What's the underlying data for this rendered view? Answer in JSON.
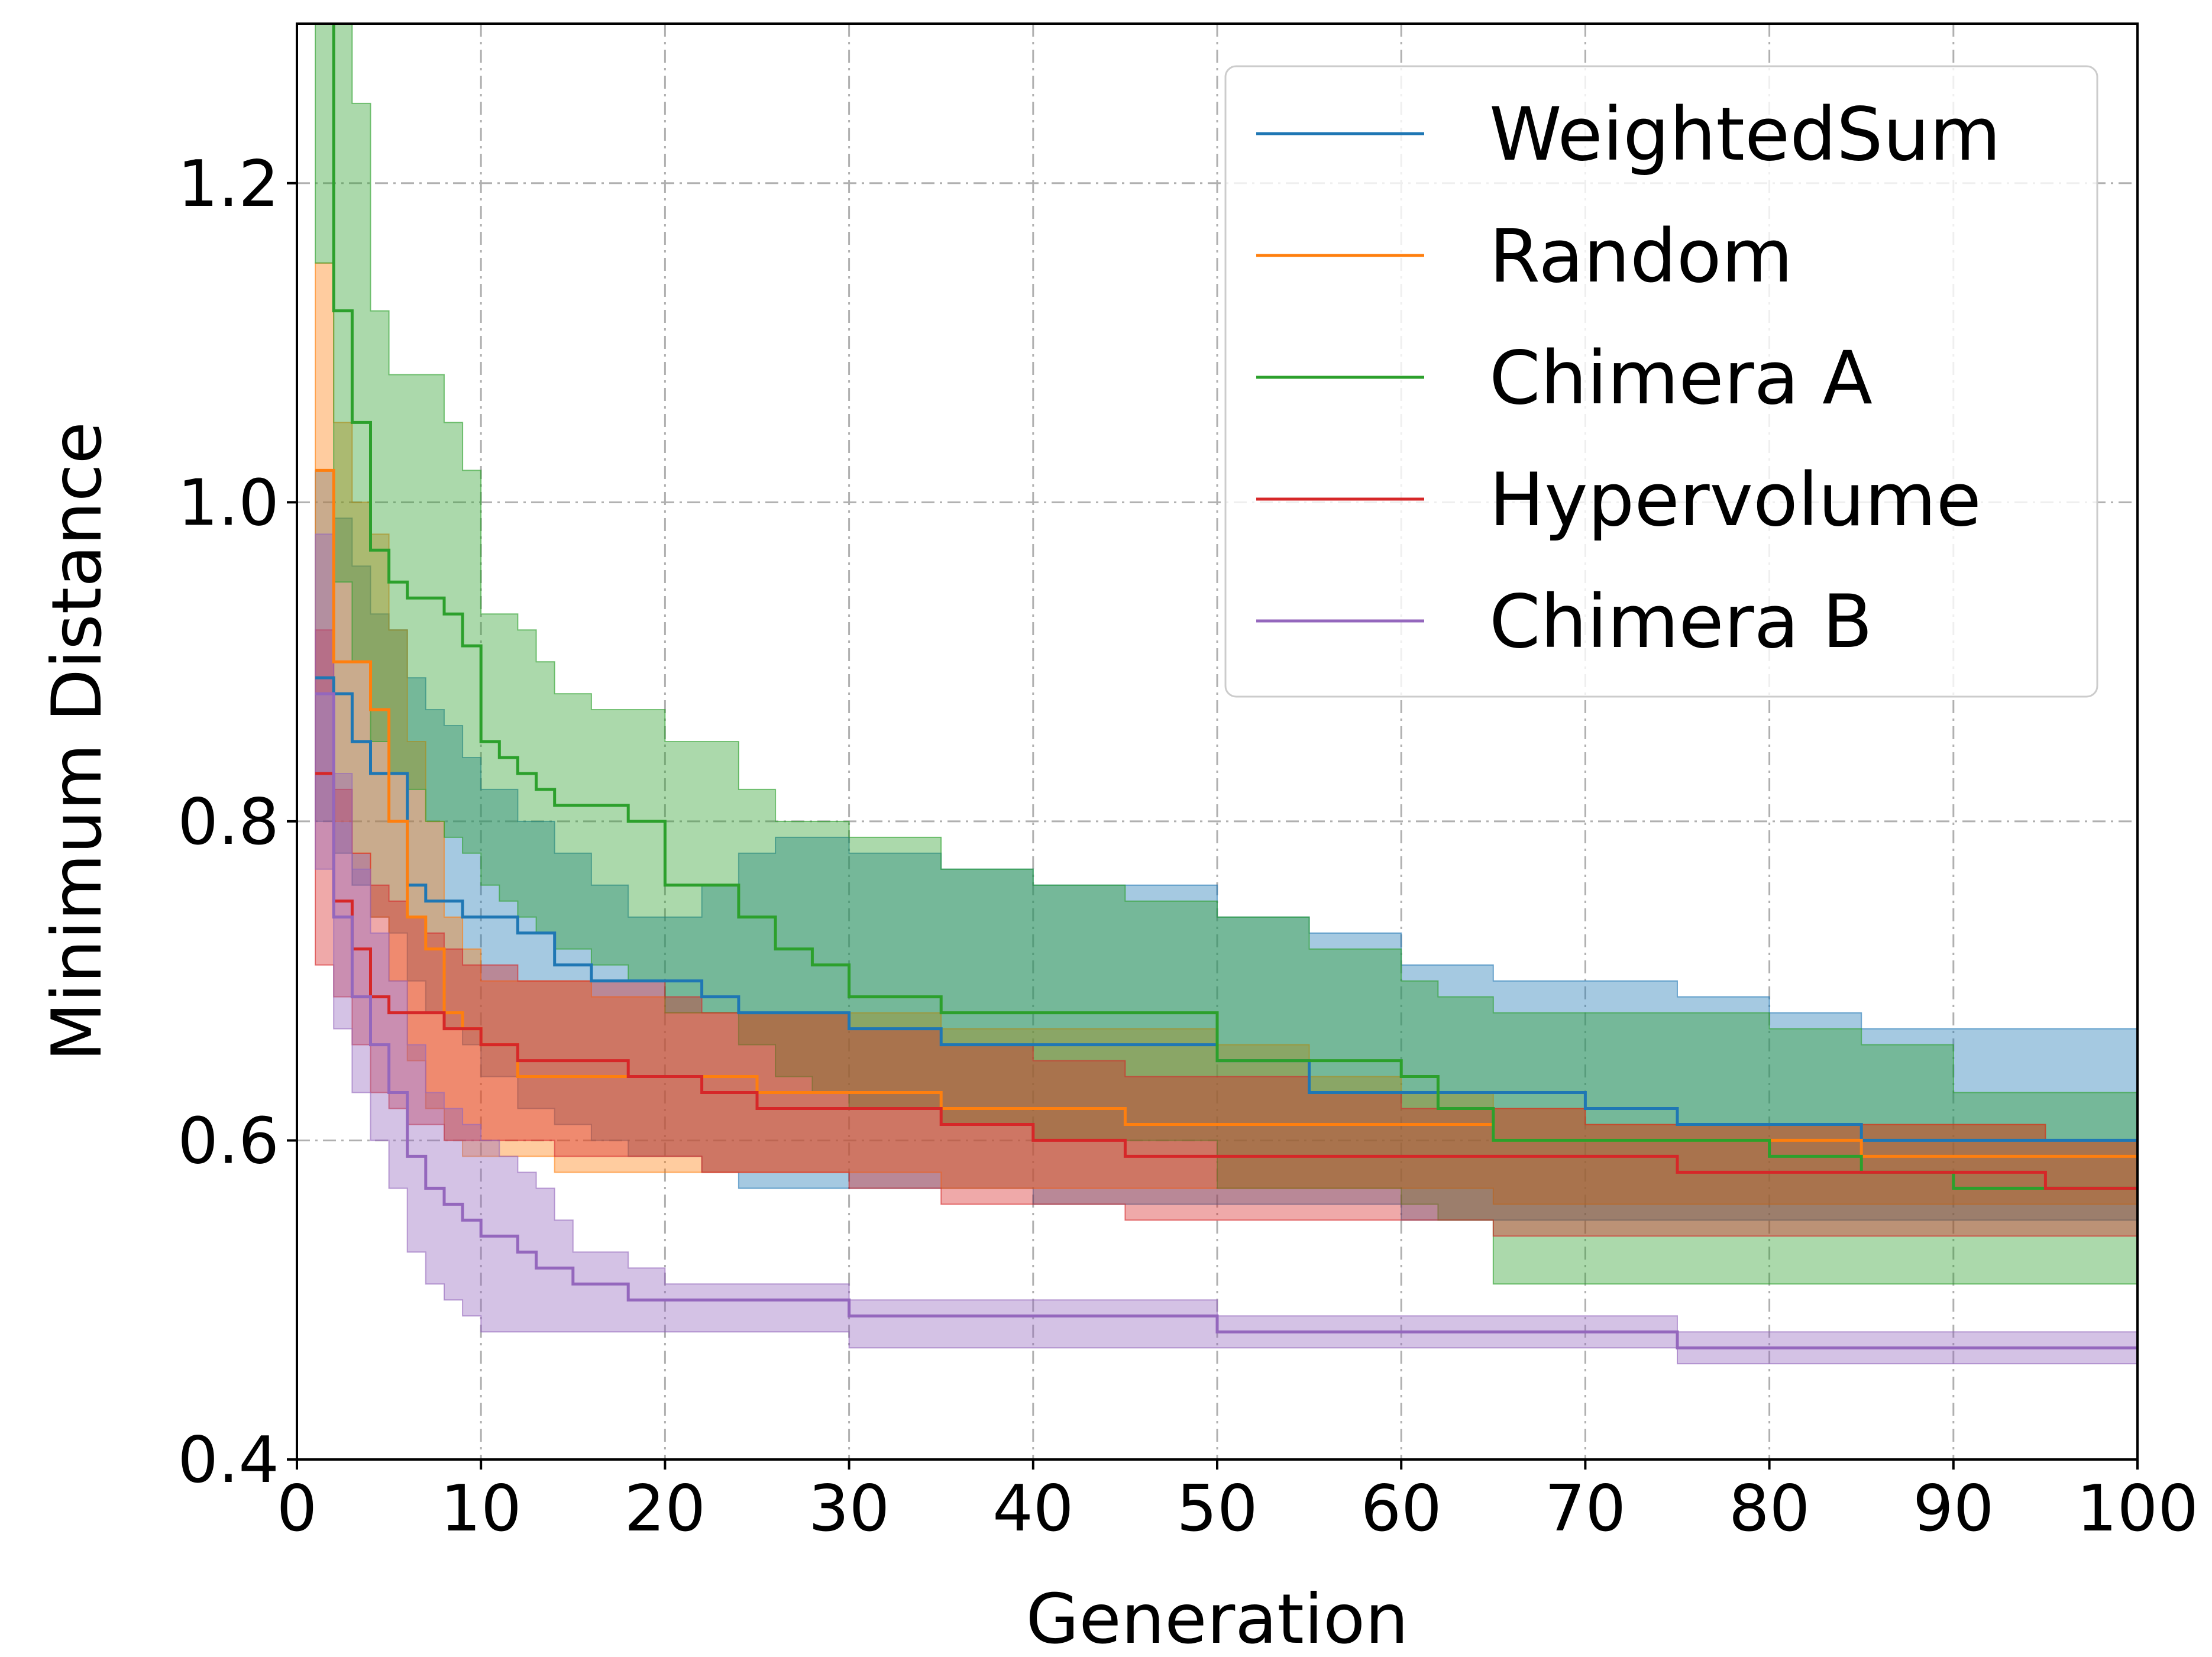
{
  "chart_data": {
    "type": "line",
    "title": "",
    "xlabel": "Generation",
    "ylabel": "Minimum Distance",
    "xlim": [
      0,
      100
    ],
    "ylim": [
      0.4,
      1.3
    ],
    "xticks": [
      "0",
      "10",
      "20",
      "30",
      "40",
      "50",
      "60",
      "70",
      "80",
      "90",
      "100"
    ],
    "yticks": [
      "0.4",
      "0.6",
      "0.8",
      "1.0",
      "1.2"
    ],
    "grid": true,
    "grid_style": "dash-dot",
    "legend_position": "top-right",
    "series": [
      {
        "name": "WeightedSum",
        "color": "#1f77b4",
        "x": [
          1,
          2,
          3,
          4,
          5,
          6,
          7,
          8,
          9,
          10,
          12,
          14,
          16,
          18,
          20,
          22,
          24,
          26,
          28,
          30,
          35,
          40,
          45,
          50,
          55,
          60,
          65,
          70,
          75,
          80,
          85,
          90,
          95,
          100
        ],
        "mean": [
          0.89,
          0.88,
          0.85,
          0.83,
          0.83,
          0.76,
          0.75,
          0.75,
          0.74,
          0.74,
          0.73,
          0.71,
          0.7,
          0.7,
          0.7,
          0.69,
          0.68,
          0.68,
          0.68,
          0.67,
          0.66,
          0.66,
          0.66,
          0.65,
          0.63,
          0.63,
          0.63,
          0.62,
          0.61,
          0.61,
          0.6,
          0.6,
          0.6,
          0.6
        ],
        "upper": [
          1.02,
          0.99,
          0.96,
          0.93,
          0.92,
          0.89,
          0.87,
          0.86,
          0.84,
          0.82,
          0.8,
          0.78,
          0.76,
          0.74,
          0.74,
          0.76,
          0.78,
          0.79,
          0.79,
          0.78,
          0.77,
          0.76,
          0.76,
          0.74,
          0.73,
          0.71,
          0.7,
          0.7,
          0.69,
          0.68,
          0.67,
          0.67,
          0.67,
          0.67
        ],
        "lower": [
          0.8,
          0.78,
          0.76,
          0.74,
          0.73,
          0.7,
          0.68,
          0.67,
          0.66,
          0.64,
          0.62,
          0.61,
          0.6,
          0.59,
          0.59,
          0.58,
          0.57,
          0.57,
          0.57,
          0.57,
          0.57,
          0.56,
          0.56,
          0.56,
          0.56,
          0.55,
          0.55,
          0.55,
          0.55,
          0.55,
          0.55,
          0.55,
          0.55,
          0.55
        ]
      },
      {
        "name": "Random",
        "color": "#ff7f0e",
        "x": [
          1,
          2,
          3,
          4,
          5,
          6,
          7,
          8,
          9,
          10,
          12,
          14,
          16,
          18,
          20,
          25,
          30,
          35,
          40,
          45,
          50,
          55,
          60,
          65,
          70,
          75,
          80,
          85,
          90,
          95,
          100
        ],
        "mean": [
          1.02,
          0.9,
          0.9,
          0.87,
          0.8,
          0.74,
          0.72,
          0.68,
          0.67,
          0.66,
          0.64,
          0.64,
          0.64,
          0.64,
          0.64,
          0.63,
          0.63,
          0.62,
          0.62,
          0.61,
          0.61,
          0.61,
          0.61,
          0.6,
          0.6,
          0.6,
          0.6,
          0.59,
          0.59,
          0.59,
          0.59
        ],
        "upper": [
          1.15,
          1.05,
          1.0,
          0.98,
          0.92,
          0.85,
          0.8,
          0.74,
          0.72,
          0.7,
          0.7,
          0.7,
          0.69,
          0.69,
          0.68,
          0.68,
          0.68,
          0.67,
          0.67,
          0.67,
          0.66,
          0.64,
          0.63,
          0.62,
          0.61,
          0.61,
          0.61,
          0.61,
          0.61,
          0.6,
          0.6
        ],
        "lower": [
          0.88,
          0.8,
          0.78,
          0.74,
          0.7,
          0.65,
          0.62,
          0.6,
          0.59,
          0.59,
          0.59,
          0.58,
          0.58,
          0.58,
          0.58,
          0.58,
          0.58,
          0.57,
          0.57,
          0.57,
          0.57,
          0.57,
          0.57,
          0.56,
          0.56,
          0.56,
          0.56,
          0.56,
          0.56,
          0.56,
          0.56
        ]
      },
      {
        "name": "Chimera A",
        "color": "#2ca02c",
        "x": [
          1,
          2,
          3,
          4,
          5,
          6,
          7,
          8,
          9,
          10,
          11,
          12,
          13,
          14,
          16,
          18,
          20,
          22,
          24,
          26,
          28,
          30,
          35,
          40,
          45,
          50,
          55,
          60,
          62,
          65,
          70,
          75,
          80,
          85,
          90,
          95,
          100
        ],
        "mean": [
          1.32,
          1.12,
          1.05,
          0.97,
          0.95,
          0.94,
          0.94,
          0.93,
          0.91,
          0.85,
          0.84,
          0.83,
          0.82,
          0.81,
          0.81,
          0.8,
          0.76,
          0.76,
          0.74,
          0.72,
          0.71,
          0.69,
          0.68,
          0.68,
          0.68,
          0.65,
          0.65,
          0.64,
          0.62,
          0.6,
          0.6,
          0.6,
          0.59,
          0.58,
          0.57,
          0.57,
          0.57
        ],
        "upper": [
          1.45,
          1.3,
          1.25,
          1.12,
          1.08,
          1.08,
          1.08,
          1.05,
          1.02,
          0.93,
          0.93,
          0.92,
          0.9,
          0.88,
          0.87,
          0.87,
          0.85,
          0.85,
          0.82,
          0.8,
          0.8,
          0.79,
          0.77,
          0.76,
          0.75,
          0.74,
          0.72,
          0.7,
          0.69,
          0.68,
          0.68,
          0.68,
          0.67,
          0.66,
          0.63,
          0.63,
          0.63
        ],
        "lower": [
          1.15,
          0.95,
          0.9,
          0.85,
          0.83,
          0.82,
          0.8,
          0.79,
          0.78,
          0.76,
          0.75,
          0.74,
          0.73,
          0.72,
          0.71,
          0.7,
          0.68,
          0.68,
          0.66,
          0.64,
          0.63,
          0.62,
          0.61,
          0.6,
          0.6,
          0.57,
          0.57,
          0.56,
          0.55,
          0.51,
          0.51,
          0.51,
          0.51,
          0.51,
          0.51,
          0.51,
          0.51
        ]
      },
      {
        "name": "Hypervolume",
        "color": "#d62728",
        "x": [
          1,
          2,
          3,
          4,
          5,
          6,
          7,
          8,
          9,
          10,
          12,
          14,
          16,
          18,
          20,
          22,
          25,
          30,
          35,
          40,
          45,
          50,
          55,
          60,
          65,
          70,
          75,
          80,
          85,
          90,
          95,
          100
        ],
        "mean": [
          0.83,
          0.75,
          0.72,
          0.69,
          0.68,
          0.68,
          0.68,
          0.67,
          0.67,
          0.66,
          0.65,
          0.65,
          0.65,
          0.64,
          0.64,
          0.63,
          0.62,
          0.62,
          0.61,
          0.6,
          0.59,
          0.59,
          0.59,
          0.59,
          0.59,
          0.59,
          0.58,
          0.58,
          0.58,
          0.58,
          0.57,
          0.57
        ],
        "upper": [
          0.92,
          0.82,
          0.78,
          0.76,
          0.75,
          0.74,
          0.73,
          0.72,
          0.71,
          0.71,
          0.7,
          0.7,
          0.7,
          0.7,
          0.69,
          0.68,
          0.68,
          0.67,
          0.66,
          0.65,
          0.64,
          0.64,
          0.63,
          0.62,
          0.62,
          0.61,
          0.61,
          0.61,
          0.61,
          0.61,
          0.6,
          0.6
        ],
        "lower": [
          0.71,
          0.69,
          0.66,
          0.63,
          0.62,
          0.61,
          0.61,
          0.6,
          0.6,
          0.6,
          0.6,
          0.59,
          0.59,
          0.59,
          0.59,
          0.58,
          0.58,
          0.57,
          0.56,
          0.56,
          0.55,
          0.55,
          0.55,
          0.55,
          0.54,
          0.54,
          0.54,
          0.54,
          0.54,
          0.54,
          0.54,
          0.54
        ]
      },
      {
        "name": "Chimera B",
        "color": "#9467bd",
        "x": [
          1,
          2,
          3,
          4,
          5,
          6,
          7,
          8,
          9,
          10,
          11,
          12,
          13,
          14,
          15,
          16,
          18,
          20,
          25,
          30,
          35,
          40,
          45,
          50,
          55,
          60,
          65,
          70,
          75,
          80,
          85,
          90,
          95,
          100
        ],
        "mean": [
          0.88,
          0.74,
          0.69,
          0.66,
          0.63,
          0.59,
          0.57,
          0.56,
          0.55,
          0.54,
          0.54,
          0.53,
          0.52,
          0.52,
          0.51,
          0.51,
          0.5,
          0.5,
          0.5,
          0.49,
          0.49,
          0.49,
          0.49,
          0.48,
          0.48,
          0.48,
          0.48,
          0.48,
          0.47,
          0.47,
          0.47,
          0.47,
          0.47,
          0.47
        ],
        "upper": [
          0.98,
          0.83,
          0.77,
          0.73,
          0.7,
          0.66,
          0.63,
          0.62,
          0.61,
          0.6,
          0.59,
          0.58,
          0.57,
          0.55,
          0.53,
          0.53,
          0.52,
          0.51,
          0.51,
          0.5,
          0.5,
          0.5,
          0.5,
          0.49,
          0.49,
          0.49,
          0.49,
          0.49,
          0.48,
          0.48,
          0.48,
          0.48,
          0.48,
          0.48
        ],
        "lower": [
          0.77,
          0.67,
          0.63,
          0.6,
          0.57,
          0.53,
          0.51,
          0.5,
          0.49,
          0.48,
          0.48,
          0.48,
          0.48,
          0.48,
          0.48,
          0.48,
          0.48,
          0.48,
          0.48,
          0.47,
          0.47,
          0.47,
          0.47,
          0.47,
          0.47,
          0.47,
          0.47,
          0.47,
          0.46,
          0.46,
          0.46,
          0.46,
          0.46,
          0.46
        ]
      }
    ]
  }
}
